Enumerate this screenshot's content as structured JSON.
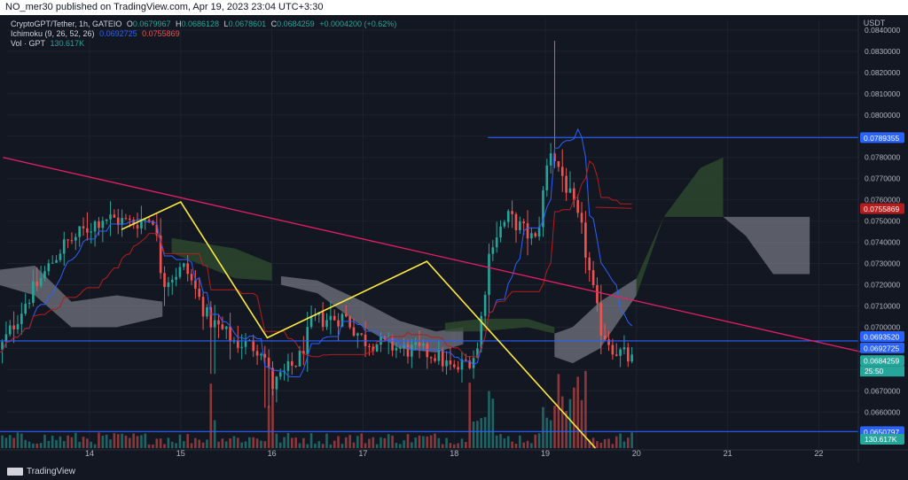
{
  "header": {
    "published": "NO_mer30 published on TradingView.com, Apr 19, 2023 23:04 UTC+3:30"
  },
  "legend": {
    "symbol": "CryptoGPT/Tether, 1h, GATEIO",
    "o_label": "O",
    "o_value": "0.0679967",
    "h_label": "H",
    "h_value": "0.0686128",
    "l_label": "L",
    "l_value": "0.0678601",
    "c_label": "C",
    "c_value": "0.0684259",
    "change": "+0.0004200 (+0.62%)",
    "ichimoku_label": "Ichimoku (9, 26, 52, 26)",
    "ichimoku_v1": "0.0692725",
    "ichimoku_v2": "0.0755869",
    "vol_label": "Vol · GPT",
    "vol_value": "130.617K"
  },
  "axis": {
    "currency": "USDT"
  },
  "brand": {
    "name": "TradingView"
  },
  "colors": {
    "background": "#131722",
    "up": "#26a69a",
    "down": "#ef5350",
    "blue_line": "#2962ff",
    "kijun": "#b71c1c",
    "trendline": "#e91e63",
    "zigzag": "#ffeb3b",
    "cloud_bull": "#2e4a2e",
    "cloud_bear": "#9598a1",
    "grid": "#1e222d",
    "axis_text": "#b2b5be"
  },
  "chart_data": {
    "type": "candlestick",
    "symbol": "CryptoGPT/Tether",
    "interval": "1h",
    "exchange": "GATEIO",
    "ylim": [
      0.0643,
      0.0845
    ],
    "y_ticks": [
      "0.0840000",
      "0.0830000",
      "0.0820000",
      "0.0810000",
      "0.0800000",
      "0.0790000",
      "0.0780000",
      "0.0770000",
      "0.0760000",
      "0.0750000",
      "0.0740000",
      "0.0730000",
      "0.0720000",
      "0.0710000",
      "0.0700000",
      "0.0690000",
      "0.0680000",
      "0.0670000",
      "0.0660000"
    ],
    "x_ticks": [
      "14",
      "15",
      "16",
      "17",
      "18",
      "19",
      "20",
      "21",
      "22"
    ],
    "price_labels": [
      {
        "value": 0.0789355,
        "text": "0.0789355",
        "color": "#2962ff"
      },
      {
        "value": 0.0755869,
        "text": "0.0755869",
        "color": "#b71c1c"
      },
      {
        "value": 0.069352,
        "text": "0.0693520",
        "color": "#2962ff"
      },
      {
        "value": 0.0692725,
        "text": "0.0692725",
        "color": "#2962ff"
      },
      {
        "value": 0.0684259,
        "text": "0.0684259",
        "color": "#26a69a"
      },
      {
        "value": 0.0650797,
        "text": "0.0650797",
        "color": "#2962ff"
      }
    ],
    "countdown": "25:50",
    "volume_label": "130.617K",
    "horizontal_lines": [
      {
        "price": 0.0789355,
        "from_day": 18.37
      },
      {
        "price": 0.069352,
        "from_day": 13.0
      },
      {
        "price": 0.0650797,
        "from_day": 13.0
      }
    ],
    "trendline": {
      "p1": [
        13.05,
        0.078
      ],
      "p2": [
        22.5,
        0.0688
      ]
    },
    "zigzag": [
      [
        14.35,
        0.0746
      ],
      [
        15.0,
        0.0759
      ],
      [
        15.95,
        0.0695
      ],
      [
        17.7,
        0.0731
      ],
      [
        19.55,
        0.0643
      ]
    ]
  }
}
